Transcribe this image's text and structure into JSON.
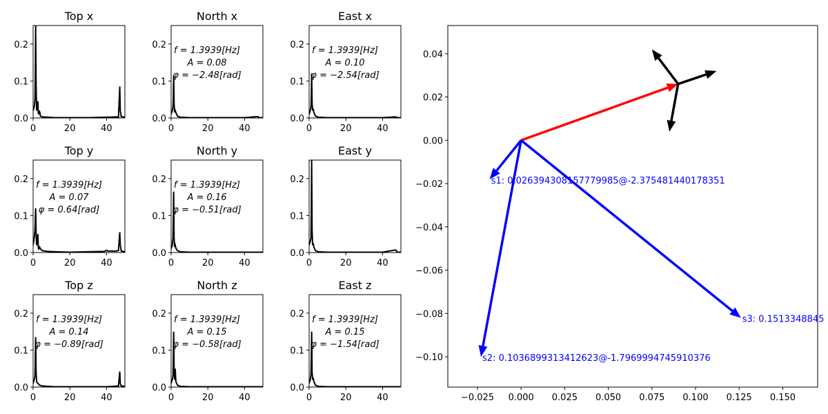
{
  "chart_data": [
    {
      "type": "line",
      "title": "Top x",
      "xlim": [
        0,
        50
      ],
      "ylim": [
        0,
        0.25
      ],
      "xticks": [
        0,
        20,
        40
      ],
      "yticks": [
        0.0,
        0.1,
        0.2
      ],
      "tick_labels_x": [
        "0",
        "20",
        "40"
      ],
      "tick_labels_y": [
        "0.0",
        "0.1",
        "0.2"
      ],
      "x": [
        0,
        0.6,
        1.0,
        1.2,
        1.39,
        1.6,
        1.9,
        2.2,
        2.6,
        2.8,
        3.0,
        3.3,
        3.7,
        4.0,
        5,
        8,
        12,
        20,
        30,
        40,
        46.5,
        47.0,
        47.2,
        47.5,
        48,
        50
      ],
      "y": [
        0.02,
        0.03,
        0.05,
        0.13,
        0.25,
        0.09,
        0.02,
        0.04,
        0.045,
        0.015,
        0.01,
        0.02,
        0.015,
        0.005,
        0.003,
        0.002,
        0.001,
        0.001,
        0.001,
        0.002,
        0.003,
        0.06,
        0.085,
        0.02,
        0.004,
        0.002
      ],
      "annotation": []
    },
    {
      "type": "line",
      "title": "North x",
      "xlim": [
        0,
        50
      ],
      "ylim": [
        0,
        0.25
      ],
      "xticks": [
        0,
        20,
        40
      ],
      "yticks": [
        0.0,
        0.1,
        0.2
      ],
      "tick_labels_x": [
        "0",
        "20",
        "40"
      ],
      "tick_labels_y": [
        "0.0",
        "0.1",
        "0.2"
      ],
      "x": [
        0,
        0.6,
        1.0,
        1.2,
        1.39,
        1.6,
        1.9,
        2.2,
        2.6,
        3.0,
        3.5,
        5,
        10,
        20,
        30,
        40,
        47.2,
        48,
        50
      ],
      "y": [
        0.01,
        0.02,
        0.03,
        0.06,
        0.115,
        0.04,
        0.015,
        0.02,
        0.015,
        0.01,
        0.005,
        0.002,
        0.001,
        0.001,
        0.001,
        0.001,
        0.004,
        0.001,
        0.001
      ],
      "annotation": [
        "$f = 1.3939[Hz]$",
        "$A = 0.08$",
        "$\\varphi = -2.48[rad]$"
      ]
    },
    {
      "type": "line",
      "title": "East x",
      "xlim": [
        0,
        50
      ],
      "ylim": [
        0,
        0.25
      ],
      "xticks": [
        0,
        20,
        40
      ],
      "yticks": [
        0.0,
        0.1,
        0.2
      ],
      "tick_labels_x": [
        "0",
        "20",
        "40"
      ],
      "tick_labels_y": [
        "0.0",
        "0.1",
        "0.2"
      ],
      "x": [
        0,
        0.6,
        1.0,
        1.2,
        1.39,
        1.6,
        1.9,
        2.2,
        2.6,
        3.0,
        3.5,
        5,
        10,
        20,
        30,
        40,
        47.2,
        48,
        50
      ],
      "y": [
        0.01,
        0.02,
        0.03,
        0.06,
        0.12,
        0.04,
        0.02,
        0.025,
        0.015,
        0.01,
        0.005,
        0.002,
        0.001,
        0.001,
        0.001,
        0.001,
        0.003,
        0.001,
        0.001
      ],
      "annotation": [
        "$f = 1.3939[Hz]$",
        "$A = 0.10$",
        "$\\varphi = -2.54[rad]$"
      ]
    },
    {
      "type": "line",
      "title": "Top y",
      "xlim": [
        0,
        50
      ],
      "ylim": [
        0,
        0.25
      ],
      "xticks": [
        0,
        20,
        40
      ],
      "yticks": [
        0.0,
        0.1,
        0.2
      ],
      "tick_labels_x": [
        "0",
        "20",
        "40"
      ],
      "tick_labels_y": [
        "0.0",
        "0.1",
        "0.2"
      ],
      "x": [
        0,
        0.6,
        1.0,
        1.2,
        1.39,
        1.6,
        1.9,
        2.2,
        2.6,
        2.8,
        3.0,
        3.5,
        4.0,
        5,
        8,
        12,
        20,
        30,
        39,
        40,
        41,
        45,
        46.5,
        47.0,
        47.2,
        47.5,
        48,
        50
      ],
      "y": [
        0.02,
        0.04,
        0.06,
        0.09,
        0.12,
        0.05,
        0.02,
        0.035,
        0.05,
        0.015,
        0.01,
        0.015,
        0.01,
        0.005,
        0.003,
        0.002,
        0.001,
        0.002,
        0.003,
        0.006,
        0.004,
        0.004,
        0.005,
        0.04,
        0.055,
        0.02,
        0.004,
        0.002
      ],
      "annotation": [
        "$f = 1.3939[Hz]$",
        "$A = 0.07$",
        "$\\varphi = 0.64[rad]$"
      ]
    },
    {
      "type": "line",
      "title": "North y",
      "xlim": [
        0,
        50
      ],
      "ylim": [
        0,
        0.25
      ],
      "xticks": [
        0,
        20,
        40
      ],
      "yticks": [
        0.0,
        0.1,
        0.2
      ],
      "tick_labels_x": [
        "0",
        "20",
        "40"
      ],
      "tick_labels_y": [
        "0.0",
        "0.1",
        "0.2"
      ],
      "x": [
        0,
        0.6,
        1.0,
        1.2,
        1.39,
        1.6,
        1.9,
        2.2,
        2.6,
        3.0,
        3.5,
        5,
        10,
        20,
        30,
        40,
        50
      ],
      "y": [
        0.01,
        0.02,
        0.04,
        0.1,
        0.165,
        0.04,
        0.015,
        0.02,
        0.012,
        0.008,
        0.005,
        0.002,
        0.001,
        0.001,
        0.001,
        0.001,
        0.001
      ],
      "annotation": [
        "$f = 1.3939[Hz]$",
        "$A = 0.16$",
        "$\\varphi = -0.51[rad]$"
      ]
    },
    {
      "type": "line",
      "title": "East y",
      "xlim": [
        0,
        50
      ],
      "ylim": [
        0,
        0.25
      ],
      "xticks": [
        0,
        20,
        40
      ],
      "yticks": [
        0.0,
        0.1,
        0.2
      ],
      "tick_labels_x": [
        "0",
        "20",
        "40"
      ],
      "tick_labels_y": [
        "0.0",
        "0.1",
        "0.2"
      ],
      "x": [
        0,
        0.6,
        1.0,
        1.2,
        1.39,
        1.6,
        1.9,
        2.2,
        2.6,
        3.0,
        3.5,
        5,
        10,
        20,
        30,
        40,
        47.2,
        48,
        50
      ],
      "y": [
        0.02,
        0.03,
        0.04,
        0.12,
        0.25,
        0.06,
        0.02,
        0.025,
        0.015,
        0.01,
        0.005,
        0.002,
        0.001,
        0.001,
        0.001,
        0.001,
        0.007,
        0.001,
        0.001
      ],
      "annotation": []
    },
    {
      "type": "line",
      "title": "Top z",
      "xlim": [
        0,
        50
      ],
      "ylim": [
        0,
        0.25
      ],
      "xticks": [
        0,
        20,
        40
      ],
      "yticks": [
        0.0,
        0.1,
        0.2
      ],
      "tick_labels_x": [
        "0",
        "20",
        "40"
      ],
      "tick_labels_y": [
        "0.0",
        "0.1",
        "0.2"
      ],
      "x": [
        0,
        0.6,
        1.0,
        1.2,
        1.39,
        1.6,
        1.9,
        2.2,
        2.6,
        3.0,
        3.5,
        5,
        8,
        12,
        20,
        30,
        40,
        46.5,
        47.0,
        47.2,
        47.5,
        48,
        50
      ],
      "y": [
        0.01,
        0.02,
        0.03,
        0.08,
        0.135,
        0.04,
        0.015,
        0.012,
        0.01,
        0.008,
        0.005,
        0.003,
        0.002,
        0.001,
        0.001,
        0.001,
        0.001,
        0.003,
        0.03,
        0.042,
        0.01,
        0.003,
        0.002
      ],
      "annotation": [
        "$f = 1.3939[Hz]$",
        "$A = 0.14$",
        "$\\varphi = -0.89[rad]$"
      ]
    },
    {
      "type": "line",
      "title": "North z",
      "xlim": [
        0,
        50
      ],
      "ylim": [
        0,
        0.25
      ],
      "xticks": [
        0,
        20,
        40
      ],
      "yticks": [
        0.0,
        0.1,
        0.2
      ],
      "tick_labels_x": [
        "0",
        "20",
        "40"
      ],
      "tick_labels_y": [
        "0.0",
        "0.1",
        "0.2"
      ],
      "x": [
        0,
        0.6,
        1.0,
        1.2,
        1.39,
        1.6,
        1.9,
        2.2,
        2.6,
        3.0,
        3.5,
        5,
        10,
        20,
        30,
        40,
        50
      ],
      "y": [
        0.01,
        0.02,
        0.03,
        0.08,
        0.15,
        0.05,
        0.02,
        0.05,
        0.015,
        0.01,
        0.005,
        0.002,
        0.001,
        0.001,
        0.001,
        0.001,
        0.001
      ],
      "annotation": [
        "$f = 1.3939[Hz]$",
        "$A = 0.15$",
        "$\\varphi = -0.58[rad]$"
      ]
    },
    {
      "type": "line",
      "title": "East z",
      "xlim": [
        0,
        50
      ],
      "ylim": [
        0,
        0.25
      ],
      "xticks": [
        0,
        20,
        40
      ],
      "yticks": [
        0.0,
        0.1,
        0.2
      ],
      "tick_labels_x": [
        "0",
        "20",
        "40"
      ],
      "tick_labels_y": [
        "0.0",
        "0.1",
        "0.2"
      ],
      "x": [
        0,
        0.6,
        1.0,
        1.2,
        1.39,
        1.6,
        1.9,
        2.2,
        2.6,
        3.0,
        3.5,
        5,
        10,
        20,
        30,
        40,
        50
      ],
      "y": [
        0.01,
        0.02,
        0.035,
        0.08,
        0.15,
        0.04,
        0.02,
        0.025,
        0.015,
        0.01,
        0.005,
        0.002,
        0.001,
        0.001,
        0.001,
        0.001,
        0.001
      ],
      "annotation": [
        "$f = 1.3939[Hz]$",
        "$A = 0.15$",
        "$\\varphi = -1.54[rad]$"
      ]
    },
    {
      "type": "scatter",
      "title": "",
      "xlim": [
        -0.042,
        0.17
      ],
      "ylim": [
        -0.114,
        0.053
      ],
      "xticks": [
        -0.025,
        0.0,
        0.025,
        0.05,
        0.075,
        0.1,
        0.125,
        0.15
      ],
      "tick_labels_x": [
        "−0.025",
        "0.000",
        "0.025",
        "0.050",
        "0.075",
        "0.100",
        "0.125",
        "0.150"
      ],
      "yticks": [
        -0.1,
        -0.08,
        -0.06,
        -0.04,
        -0.02,
        0.0,
        0.02,
        0.04
      ],
      "tick_labels_y": [
        "−0.10",
        "−0.08",
        "−0.06",
        "−0.04",
        "−0.02",
        "0.00",
        "0.02",
        "0.04"
      ],
      "vectors": [
        {
          "x0": 0,
          "y0": 0,
          "x1": 0.09,
          "y1": 0.026,
          "color": "#ff0000",
          "label": ""
        },
        {
          "x0": 0.09,
          "y0": 0.026,
          "x1": 0.075,
          "y1": 0.042,
          "color": "#000000",
          "label": ""
        },
        {
          "x0": 0.09,
          "y0": 0.026,
          "x1": 0.112,
          "y1": 0.032,
          "color": "#000000",
          "label": ""
        },
        {
          "x0": 0.09,
          "y0": 0.026,
          "x1": 0.085,
          "y1": 0.004,
          "color": "#000000",
          "label": ""
        },
        {
          "x0": 0,
          "y0": 0,
          "x1": -0.018,
          "y1": -0.018,
          "color": "#0000ff",
          "label": "s1: 0.026394308157779985@-2.375481440178351"
        },
        {
          "x0": 0,
          "y0": 0,
          "x1": -0.023,
          "y1": -0.1,
          "color": "#0000ff",
          "label": "s2: 0.1036899313412623@-1.7969994745910376"
        },
        {
          "x0": 0,
          "y0": 0,
          "x1": 0.126,
          "y1": -0.082,
          "color": "#0000ff",
          "label": "s3: 0.1513348845"
        }
      ]
    }
  ]
}
